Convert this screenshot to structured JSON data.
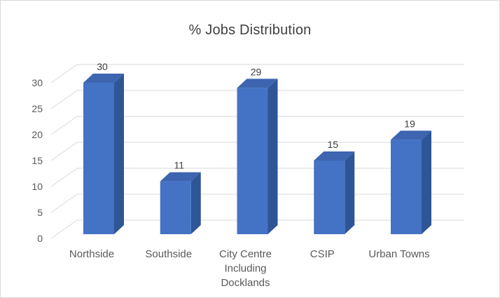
{
  "window": {
    "background": "#FFFFFF",
    "border_color": "#D9D9D9"
  },
  "chart_data": {
    "type": "bar",
    "variant": "3d-clustered-column",
    "title": "% Jobs Distribution",
    "categories": [
      "Northside",
      "Southside",
      "City Centre Including Docklands",
      "CSIP",
      "Urban Towns"
    ],
    "values": [
      30,
      11,
      29,
      15,
      19
    ],
    "data_labels": [
      "30",
      "11",
      "29",
      "15",
      "19"
    ],
    "xlabel": "",
    "ylabel": "",
    "ylim": [
      0,
      30
    ],
    "yticks": [
      0,
      5,
      10,
      15,
      20,
      25,
      30
    ],
    "grid": true,
    "legend": false,
    "colors": {
      "bar_front": "#4472C4",
      "bar_top": "#3D65B0",
      "bar_side": "#2E5596",
      "gridline": "#D9D9D9",
      "title_text": "#3F3F3F",
      "axis_text": "#595959",
      "data_label_text": "#404040"
    }
  }
}
